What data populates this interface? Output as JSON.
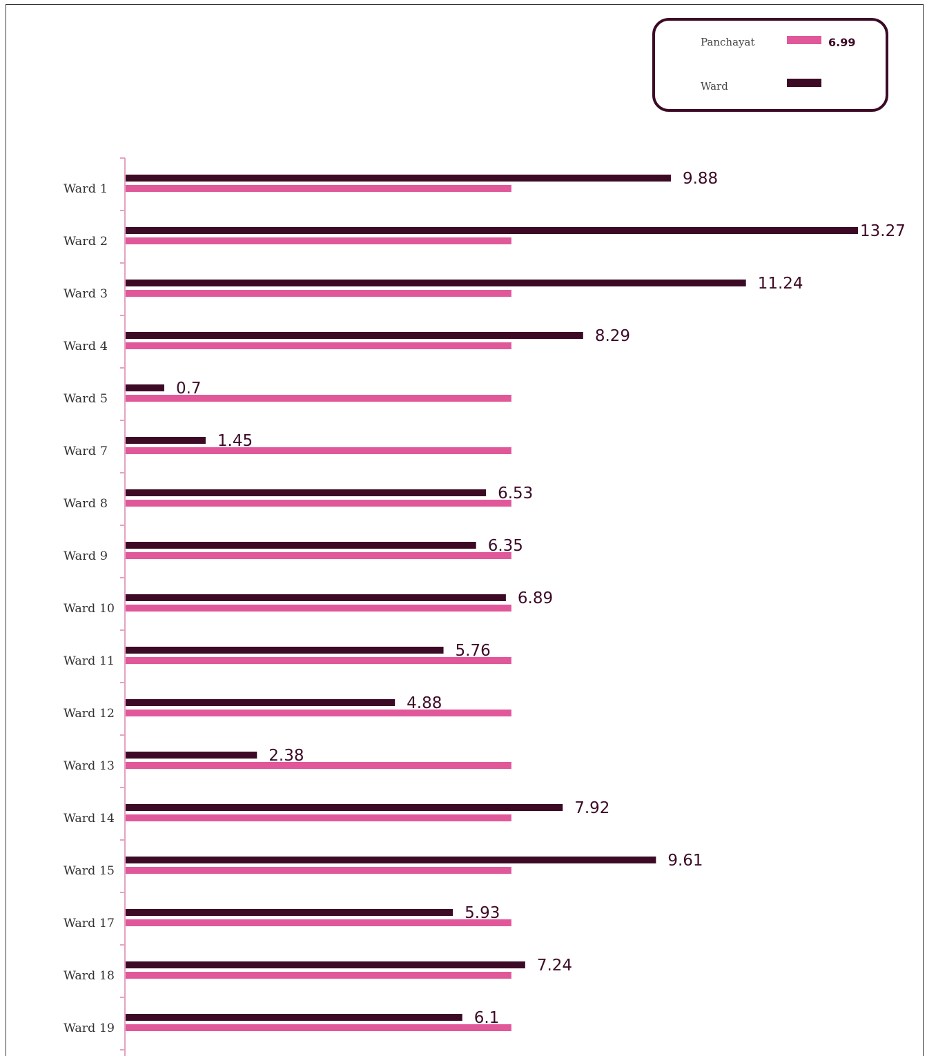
{
  "chart_data": {
    "type": "bar",
    "orientation": "horizontal",
    "categories": [
      "Ward 1",
      "Ward 2",
      "Ward 3",
      "Ward 4",
      "Ward 5",
      "Ward 7",
      "Ward 8",
      "Ward 9",
      "Ward 10",
      "Ward 11",
      "Ward 12",
      "Ward 13",
      "Ward 14",
      "Ward 15",
      "Ward 17",
      "Ward 18",
      "Ward 19"
    ],
    "series": [
      {
        "name": "Ward",
        "color": "#3d0a26",
        "values": [
          9.88,
          13.27,
          11.24,
          8.29,
          0.7,
          1.45,
          6.53,
          6.35,
          6.89,
          5.76,
          4.88,
          2.38,
          7.92,
          9.61,
          5.93,
          7.24,
          6.1
        ]
      },
      {
        "name": "Panchayat",
        "color": "#e0589a",
        "values": [
          6.99,
          6.99,
          6.99,
          6.99,
          6.99,
          6.99,
          6.99,
          6.99,
          6.99,
          6.99,
          6.99,
          6.99,
          6.99,
          6.99,
          6.99,
          6.99,
          6.99
        ]
      }
    ],
    "xlim": [
      0,
      13.27
    ],
    "grid": false,
    "legend_position": "top-right"
  },
  "legend": {
    "items": [
      {
        "label": "Panchayat",
        "value": "6.99",
        "color": "#e0589a"
      },
      {
        "label": "Ward",
        "value": "",
        "color": "#3d0a26"
      }
    ]
  },
  "colors": {
    "ward": "#3d0a26",
    "panchayat": "#e0589a",
    "axis": "#e8a0c4"
  }
}
